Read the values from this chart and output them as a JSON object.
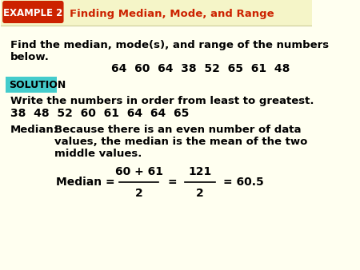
{
  "bg_color": "#fffff0",
  "header_bg": "#ffffcc",
  "example_box_color": "#cc2200",
  "example_box_text": "EXAMPLE 2",
  "header_title": "Finding Median, Mode, and Range",
  "header_title_color": "#cc2200",
  "problem_text_line1": "Find the median, mode(s), and range of the numbers",
  "problem_text_line2": "below.",
  "numbers_line": "64  60  64  38  52  65  61  48",
  "solution_bg": "#44cccc",
  "solution_text": "SOLUTION",
  "write_line": "Write the numbers in order from least to greatest.",
  "ordered_numbers": "38  48  52  60  61  64  64  65",
  "median_label": "Median:",
  "median_desc1": "Because there is an even number of data",
  "median_desc2": "values, the median is the mean of the two",
  "median_desc3": "middle values.",
  "formula_label": "Median =",
  "formula_num": "60 + 61",
  "formula_den": "2",
  "formula_eq2_num": "121",
  "formula_eq2_den": "2",
  "formula_result": "= 60.5",
  "text_color": "#000000",
  "font_size_header": 11,
  "font_size_body": 10,
  "font_size_numbers": 11
}
